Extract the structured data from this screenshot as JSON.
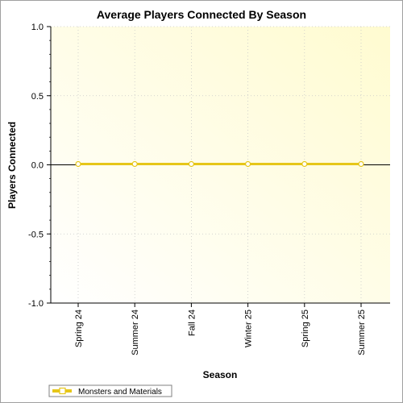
{
  "chart_data": {
    "type": "line",
    "title": "Average Players Connected By Season",
    "xlabel": "Season",
    "ylabel": "Players Connected",
    "categories": [
      "Spring 24",
      "Summer 24",
      "Fall 24",
      "Winter 25",
      "Spring 25",
      "Summer 25"
    ],
    "series": [
      {
        "name": "Monsters and Materials",
        "values": [
          0,
          0,
          0,
          0,
          0,
          0
        ],
        "color": "#e6c619"
      }
    ],
    "ylim": [
      -1.0,
      1.0
    ],
    "yticks": [
      {
        "value": 1.0,
        "label": "1.0"
      },
      {
        "value": 0.5,
        "label": "0.5"
      },
      {
        "value": 0.0,
        "label": "0.0"
      },
      {
        "value": -0.5,
        "label": "-0.5"
      },
      {
        "value": -1.0,
        "label": "-1.0"
      }
    ],
    "grid": true,
    "legend_position": "bottom-left",
    "plot_background": "#fffbd0",
    "zero_line_color": "#000000"
  }
}
